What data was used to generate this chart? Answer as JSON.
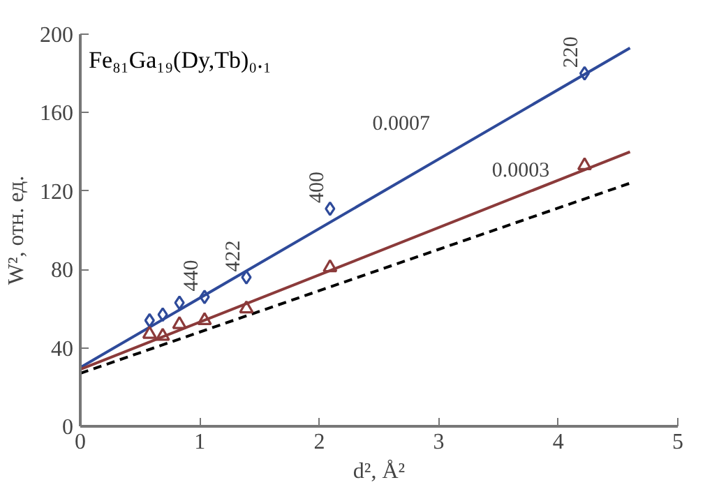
{
  "chart_data": {
    "type": "scatter",
    "title": "Fe₈₁Ga₁₉(Dy,Tb)₀.₁",
    "xlabel": "d², Å²",
    "ylabel": "W², отн. ед.",
    "xlim": [
      0,
      5
    ],
    "ylim": [
      0,
      200
    ],
    "xticks": [
      0,
      1,
      2,
      3,
      4,
      5
    ],
    "yticks": [
      0,
      40,
      80,
      120,
      160,
      200
    ],
    "grid": false,
    "series": [
      {
        "type": "line",
        "color": "#2e4a9a",
        "x": [
          0,
          4.6
        ],
        "values": [
          30,
          193
        ],
        "marker": "none",
        "line_style": "solid"
      },
      {
        "type": "line",
        "color": "#8b3a3a",
        "x": [
          0,
          4.6
        ],
        "values": [
          29,
          140
        ],
        "marker": "none",
        "line_style": "solid"
      },
      {
        "type": "line",
        "color": "#000000",
        "x": [
          0,
          4.6
        ],
        "values": [
          27,
          124
        ],
        "marker": "none",
        "line_style": "dashed"
      },
      {
        "color": "#2e4a9a",
        "x": [
          0.58,
          0.69,
          0.83,
          1.04,
          1.39,
          2.09,
          4.22
        ],
        "values": [
          54,
          57,
          63,
          66,
          76,
          111,
          180
        ],
        "marker": "diamond"
      },
      {
        "color": "#8b3a3a",
        "x": [
          0.58,
          0.69,
          0.83,
          1.04,
          1.39,
          2.09,
          4.22
        ],
        "values": [
          47,
          46,
          52,
          54,
          60,
          81,
          133
        ],
        "marker": "triangle"
      }
    ],
    "annotations": [
      {
        "text": "220",
        "x": 4.22,
        "y": 180
      },
      {
        "text": "400",
        "x": 2.09,
        "y": 111
      },
      {
        "text": "422",
        "x": 1.39,
        "y": 76
      },
      {
        "text": "440",
        "x": 1.04,
        "y": 66
      },
      {
        "text": "0.0007",
        "x": 2.95,
        "y": 134
      },
      {
        "text": "0.0003",
        "x": 3.95,
        "y": 124
      }
    ]
  }
}
